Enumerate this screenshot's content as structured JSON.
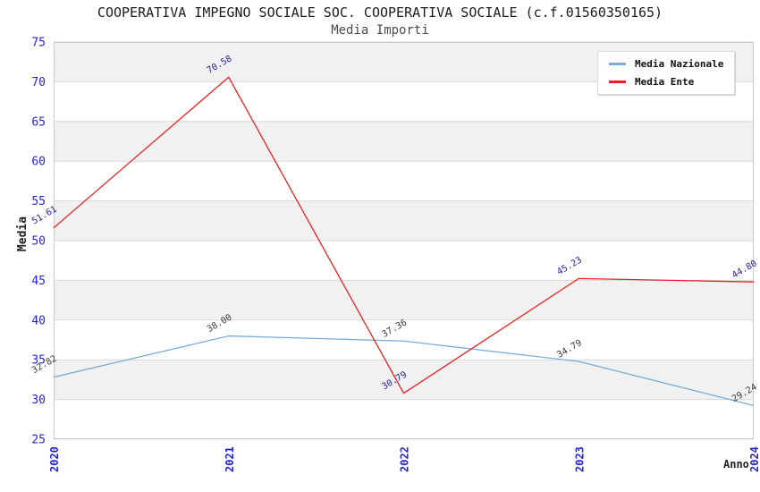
{
  "header": {
    "title": "COOPERATIVA IMPEGNO SOCIALE SOC. COOPERATIVA SOCIALE (c.f.01560350165)",
    "subtitle": "Media Importi"
  },
  "axes": {
    "y_title": "Media",
    "x_title": "Anno"
  },
  "legend": {
    "items": [
      {
        "label": "Media Nazionale",
        "color": "#79aedd"
      },
      {
        "label": "Media Ente",
        "color": "#e82222"
      }
    ]
  },
  "colors": {
    "tick_label": "#2424cc",
    "band_gray": "#f1f1f1",
    "band_white": "#ffffff",
    "gridline": "#d9d9d9",
    "plot_border": "#c9c9c9",
    "title_text": "#1c1c1c",
    "nazionale_line": "#79aedd",
    "ente_line": "#e82222",
    "nazionale_value_label": "#3a3a3a",
    "ente_value_label": "#22229b"
  },
  "chart_data": {
    "type": "line",
    "title": "COOPERATIVA IMPEGNO SOCIALE SOC. COOPERATIVA SOCIALE (c.f.01560350165)",
    "subtitle": "Media Importi",
    "xlabel": "Anno",
    "ylabel": "Media",
    "categories": [
      "2020",
      "2021",
      "2022",
      "2023",
      "2024"
    ],
    "series": [
      {
        "name": "Media Nazionale",
        "color": "#79aedd",
        "values": [
          32.82,
          38.0,
          37.36,
          34.79,
          29.24
        ],
        "labels": [
          "32.82",
          "38.00",
          "37.36",
          "34.79",
          "29.24"
        ],
        "label_color": "#3a3a3a"
      },
      {
        "name": "Media Ente",
        "color": "#e82222",
        "values": [
          51.61,
          70.58,
          30.79,
          45.23,
          44.8
        ],
        "labels": [
          "51.61",
          "70.58",
          "30.79",
          "45.23",
          "44.80"
        ],
        "label_color": "#22229b"
      }
    ],
    "ylim": [
      25,
      75
    ],
    "ytick_step": 5,
    "y_ticks": [
      "25",
      "30",
      "35",
      "40",
      "45",
      "50",
      "55",
      "60",
      "65",
      "70",
      "75"
    ],
    "grid": "horizontal gridlines with alternating gray/white bands",
    "legend_position": "top-right",
    "tick_label_color": "#2424cc",
    "band_colors": [
      "#f1f1f1",
      "#ffffff"
    ],
    "gridline_color": "#d9d9d9",
    "border_color": "#c9c9c9",
    "value_label_rotation_deg": -30,
    "x_tick_rotation_deg": -90
  }
}
